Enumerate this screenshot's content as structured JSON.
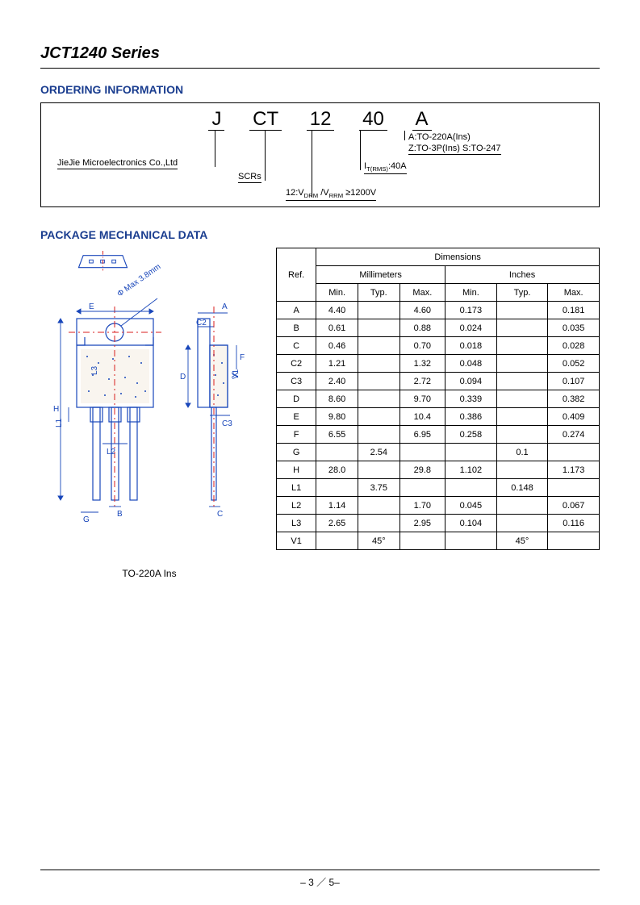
{
  "page_title": "JCT1240 Series",
  "ordering": {
    "heading": "ORDERING INFORMATION",
    "code_parts": {
      "p1": "J",
      "p2": "CT",
      "p3": "12",
      "p4": "40",
      "p5": "A"
    },
    "j_desc": "JieJie Microelectronics Co.,Ltd",
    "ct_desc": "SCRs",
    "d12_desc_pre": "12:V",
    "d12_desc_sub1": "DRM",
    "d12_desc_mid": " /V",
    "d12_desc_sub2": "RRM",
    "d12_desc_end": " ≥1200V",
    "d40_desc_pre": "I",
    "d40_desc_sub": "T(RMS)",
    "d40_desc_end": ":40A",
    "a_desc1": "A:TO-220A(Ins)",
    "a_desc2": "Z:TO-3P(Ins) S:TO-247"
  },
  "package": {
    "heading": "PACKAGE MECHANICAL DATA",
    "diagram_label": "TO-220A Ins",
    "diameter_note": "Φ Max 3.8mm",
    "table": {
      "header_dimensions": "Dimensions",
      "header_ref": "Ref.",
      "header_mm": "Millimeters",
      "header_in": "Inches",
      "header_min": "Min.",
      "header_typ": "Typ.",
      "header_max": "Max.",
      "rows": [
        {
          "ref": "A",
          "mm_min": "4.40",
          "mm_typ": "",
          "mm_max": "4.60",
          "in_min": "0.173",
          "in_typ": "",
          "in_max": "0.181"
        },
        {
          "ref": "B",
          "mm_min": "0.61",
          "mm_typ": "",
          "mm_max": "0.88",
          "in_min": "0.024",
          "in_typ": "",
          "in_max": "0.035"
        },
        {
          "ref": "C",
          "mm_min": "0.46",
          "mm_typ": "",
          "mm_max": "0.70",
          "in_min": "0.018",
          "in_typ": "",
          "in_max": "0.028"
        },
        {
          "ref": "C2",
          "mm_min": "1.21",
          "mm_typ": "",
          "mm_max": "1.32",
          "in_min": "0.048",
          "in_typ": "",
          "in_max": "0.052"
        },
        {
          "ref": "C3",
          "mm_min": "2.40",
          "mm_typ": "",
          "mm_max": "2.72",
          "in_min": "0.094",
          "in_typ": "",
          "in_max": "0.107"
        },
        {
          "ref": "D",
          "mm_min": "8.60",
          "mm_typ": "",
          "mm_max": "9.70",
          "in_min": "0.339",
          "in_typ": "",
          "in_max": "0.382"
        },
        {
          "ref": "E",
          "mm_min": "9.80",
          "mm_typ": "",
          "mm_max": "10.4",
          "in_min": "0.386",
          "in_typ": "",
          "in_max": "0.409"
        },
        {
          "ref": "F",
          "mm_min": "6.55",
          "mm_typ": "",
          "mm_max": "6.95",
          "in_min": "0.258",
          "in_typ": "",
          "in_max": "0.274"
        },
        {
          "ref": "G",
          "mm_min": "",
          "mm_typ": "2.54",
          "mm_max": "",
          "in_min": "",
          "in_typ": "0.1",
          "in_max": ""
        },
        {
          "ref": "H",
          "mm_min": "28.0",
          "mm_typ": "",
          "mm_max": "29.8",
          "in_min": "1.102",
          "in_typ": "",
          "in_max": "1.173"
        },
        {
          "ref": "L1",
          "mm_min": "",
          "mm_typ": "3.75",
          "mm_max": "",
          "in_min": "",
          "in_typ": "0.148",
          "in_max": ""
        },
        {
          "ref": "L2",
          "mm_min": "1.14",
          "mm_typ": "",
          "mm_max": "1.70",
          "in_min": "0.045",
          "in_typ": "",
          "in_max": "0.067"
        },
        {
          "ref": "L3",
          "mm_min": "2.65",
          "mm_typ": "",
          "mm_max": "2.95",
          "in_min": "0.104",
          "in_typ": "",
          "in_max": "0.116"
        },
        {
          "ref": "V1",
          "mm_min": "",
          "mm_typ": "45°",
          "mm_max": "",
          "in_min": "",
          "in_typ": "45°",
          "in_max": ""
        }
      ]
    },
    "colors": {
      "outline": "#1846ba",
      "centerline": "#d91e1e",
      "dot_fill": "#f5ede2"
    }
  },
  "footer": {
    "page": "– 3 ／ 5–"
  }
}
